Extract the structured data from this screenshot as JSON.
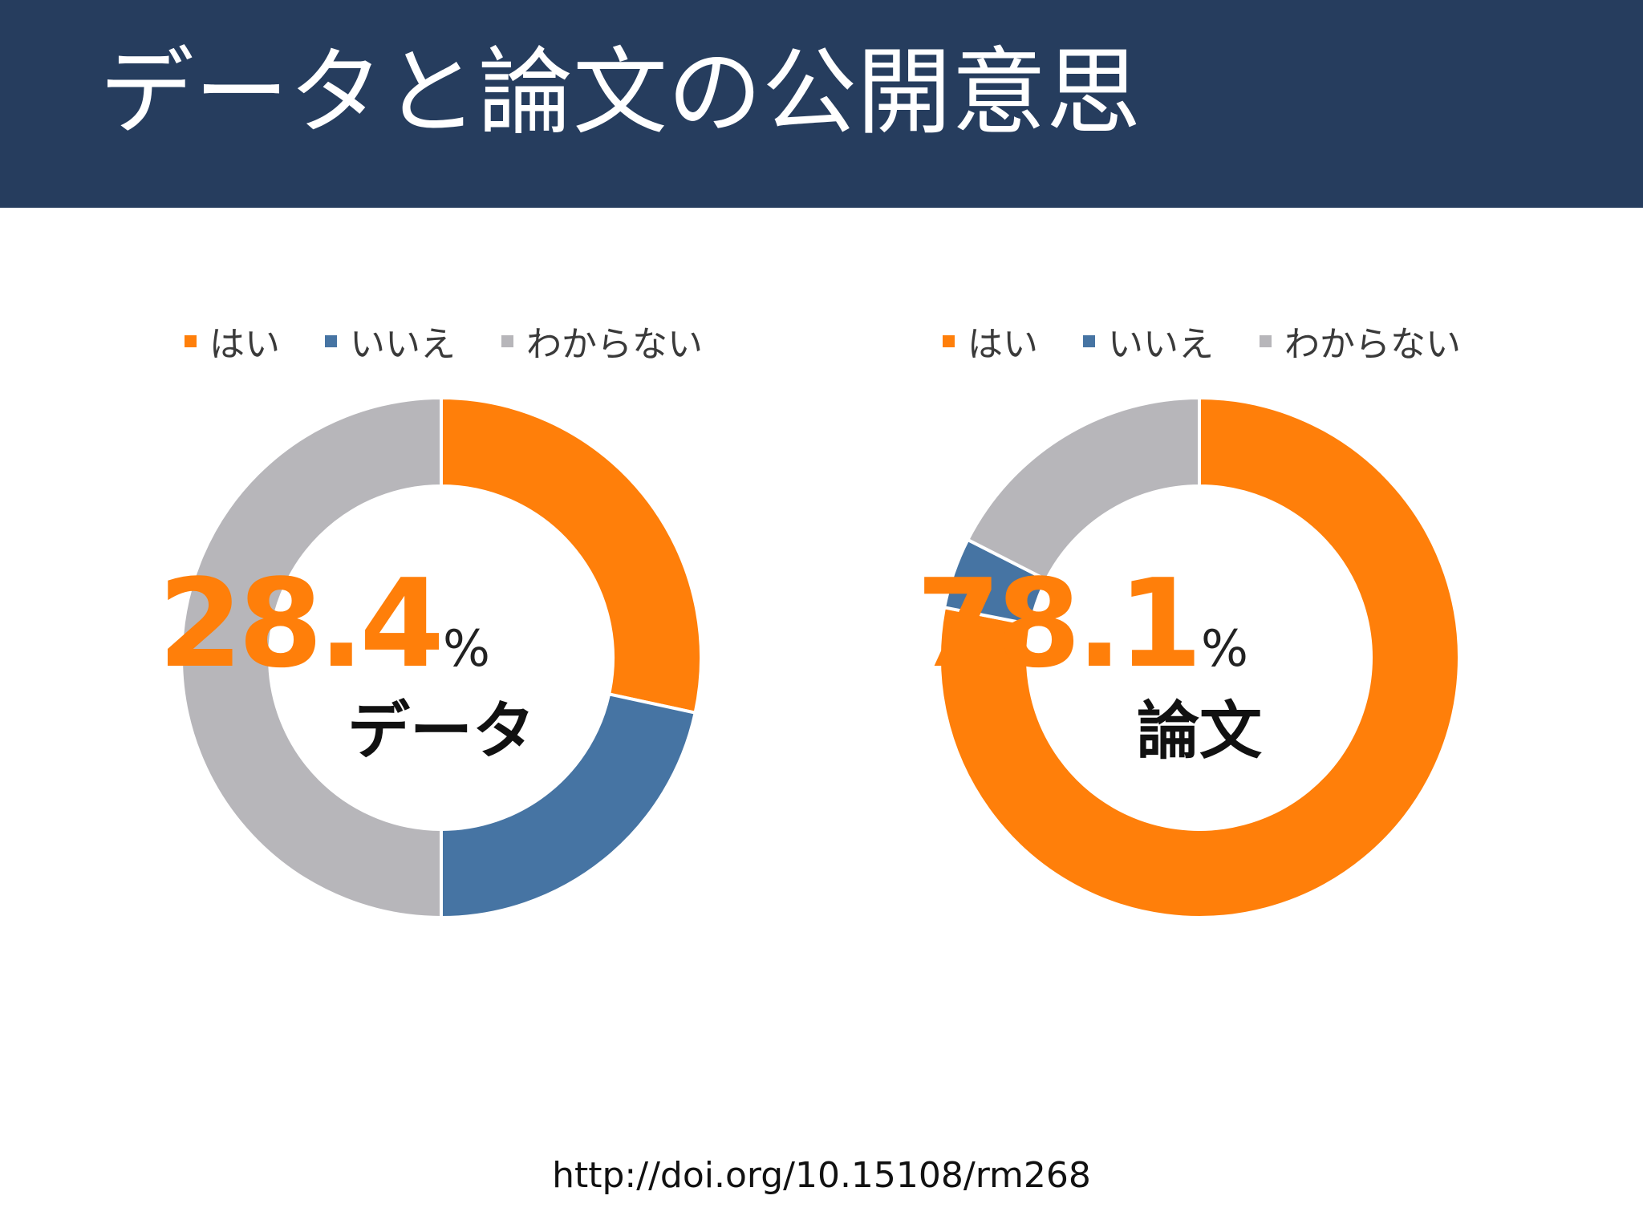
{
  "slide": {
    "title": "データと論文の公開意思",
    "source": "http://doi.org/10.15108/rm268"
  },
  "colors": {
    "header": "#263d5e",
    "yes": "#ff7f0a",
    "no": "#4674a3",
    "unknown": "#b7b6ba"
  },
  "legend": [
    {
      "label": "はい",
      "color": "#ff7f0a"
    },
    {
      "label": "いいえ",
      "color": "#4674a3"
    },
    {
      "label": "わからない",
      "color": "#b7b6ba"
    }
  ],
  "chart_data": [
    {
      "type": "pie",
      "center_value": "28.4",
      "center_unit": "%",
      "center_label": "データ",
      "categories": [
        "はい",
        "いいえ",
        "わからない"
      ],
      "values": [
        28.4,
        21.6,
        50.0
      ],
      "colors": [
        "#ff7f0a",
        "#4674a3",
        "#b7b6ba"
      ],
      "legend_position": "top"
    },
    {
      "type": "pie",
      "center_value": "78.1",
      "center_unit": "%",
      "center_label": "論文",
      "categories": [
        "はい",
        "いいえ",
        "わからない"
      ],
      "values": [
        78.1,
        4.4,
        17.5
      ],
      "colors": [
        "#ff7f0a",
        "#4674a3",
        "#b7b6ba"
      ],
      "legend_position": "top"
    }
  ]
}
